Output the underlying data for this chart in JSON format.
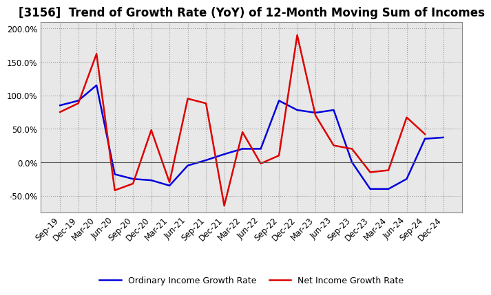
{
  "title": "[3156]  Trend of Growth Rate (YoY) of 12-Month Moving Sum of Incomes",
  "x_labels": [
    "Sep-19",
    "Dec-19",
    "Mar-20",
    "Jun-20",
    "Sep-20",
    "Dec-20",
    "Mar-21",
    "Jun-21",
    "Sep-21",
    "Dec-21",
    "Mar-22",
    "Jun-22",
    "Sep-22",
    "Dec-22",
    "Mar-23",
    "Jun-23",
    "Sep-23",
    "Dec-23",
    "Mar-24",
    "Jun-24",
    "Sep-24",
    "Dec-24"
  ],
  "ordinary_income": [
    85,
    92,
    115,
    -18,
    -25,
    -27,
    -35,
    -5,
    3,
    12,
    20,
    20,
    92,
    78,
    74,
    78,
    0,
    -40,
    -40,
    -25,
    35,
    37
  ],
  "net_income": [
    75,
    88,
    162,
    -42,
    -32,
    48,
    -30,
    95,
    88,
    -65,
    45,
    -2,
    10,
    190,
    70,
    25,
    20,
    -15,
    -12,
    67,
    42,
    null
  ],
  "ordinary_color": "#0000dd",
  "net_color": "#dd0000",
  "ylim": [
    -75,
    210
  ],
  "yticks": [
    -50,
    0,
    50,
    100,
    150,
    200
  ],
  "background_color": "#ffffff",
  "plot_bg_color": "#e8e8e8",
  "legend_ordinary": "Ordinary Income Growth Rate",
  "legend_net": "Net Income Growth Rate",
  "grid_color": "#999999",
  "title_fontsize": 12,
  "tick_fontsize": 8.5,
  "legend_fontsize": 9
}
